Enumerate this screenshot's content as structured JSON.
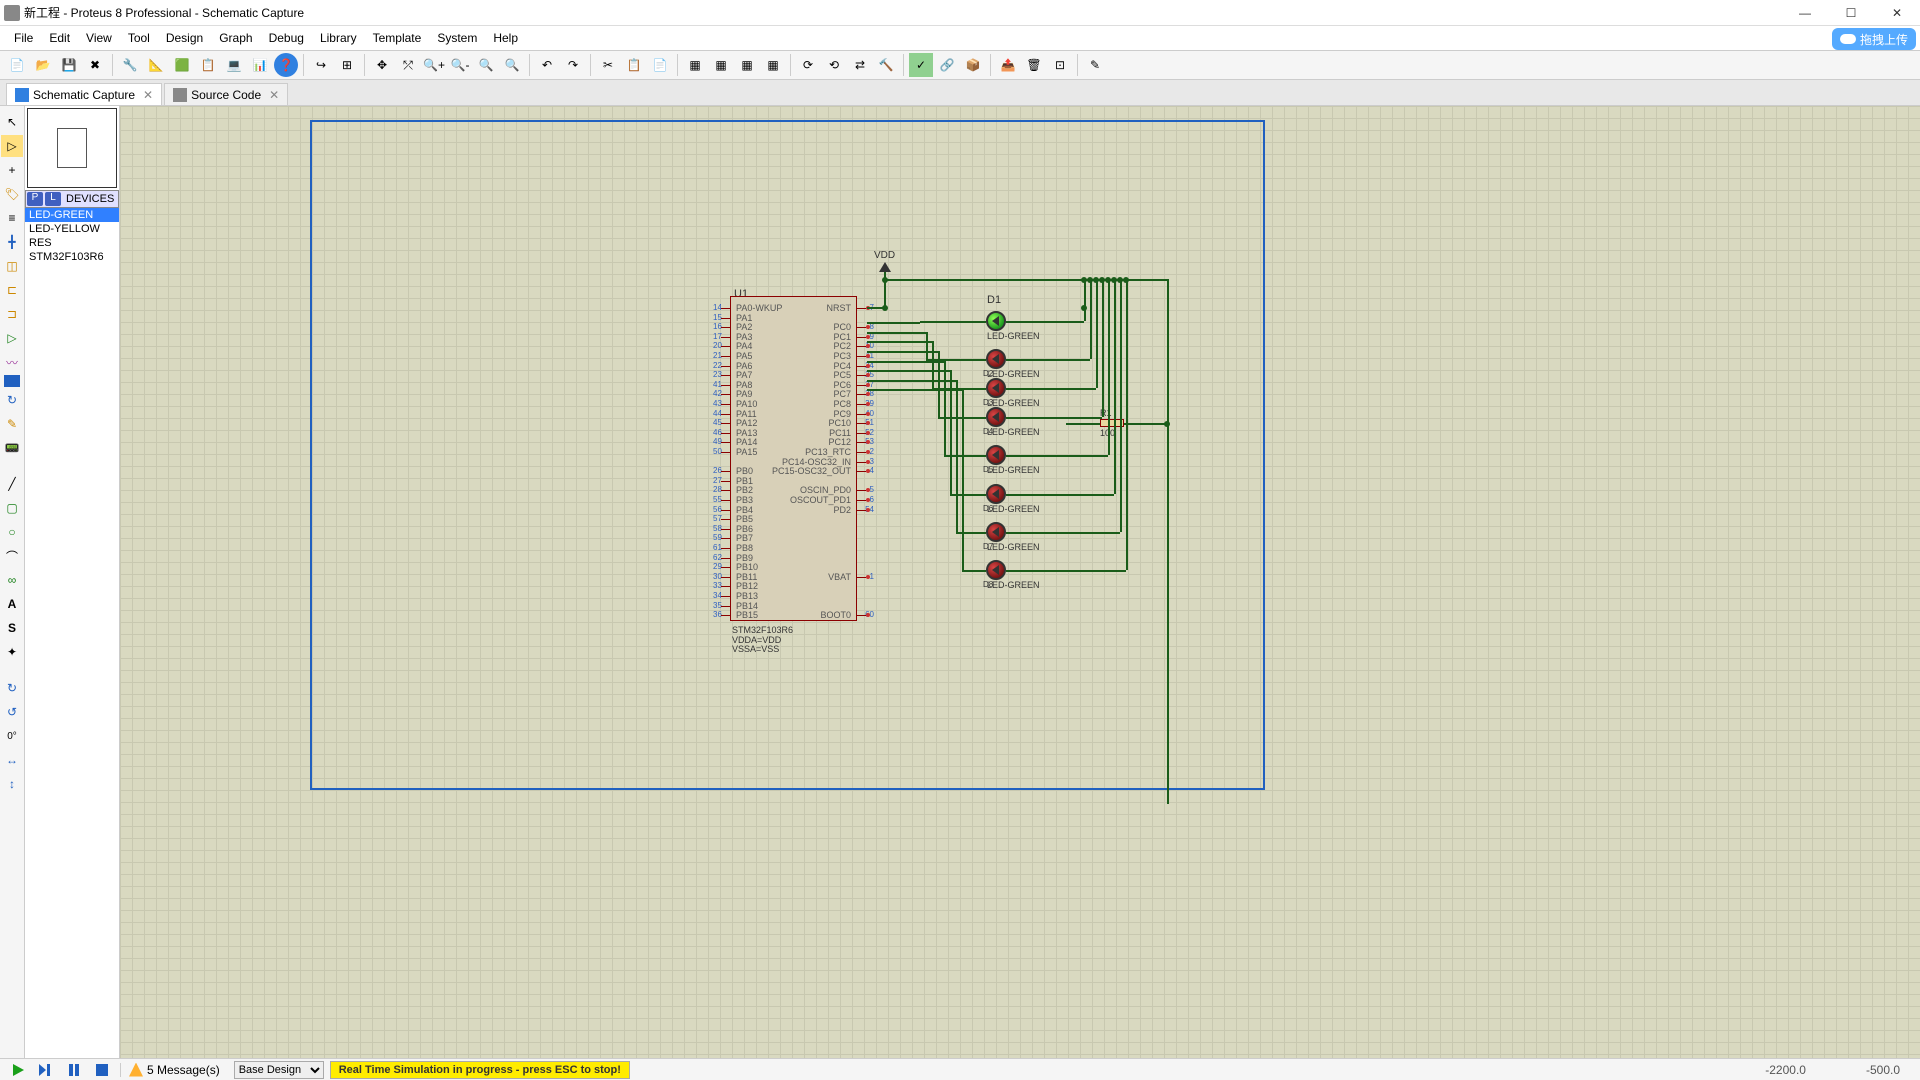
{
  "title": "新工程 - Proteus 8 Professional - Schematic Capture",
  "menu": [
    "File",
    "Edit",
    "View",
    "Tool",
    "Design",
    "Graph",
    "Debug",
    "Library",
    "Template",
    "System",
    "Help"
  ],
  "upload_label": "拖拽上传",
  "tabs": [
    {
      "label": "Schematic Capture",
      "active": true
    },
    {
      "label": "Source Code",
      "active": false
    }
  ],
  "devices_header": "DEVICES",
  "devices": [
    {
      "name": "LED-GREEN",
      "sel": true
    },
    {
      "name": "LED-YELLOW",
      "sel": false
    },
    {
      "name": "RES",
      "sel": false
    },
    {
      "name": "STM32F103R6",
      "sel": false
    }
  ],
  "messages_label": "5 Message(s)",
  "design_select": "Base Design",
  "sim_status": "Real Time Simulation in progress - press ESC to stop!",
  "coord_x": "-2200.0",
  "coord_y": "-500.0",
  "chip": {
    "ref": "U1",
    "name": "STM32F103R6",
    "sub1": "VDDA=VDD",
    "sub2": "VSSA=VSS",
    "left_pins": [
      {
        "n": "14",
        "lbl": "PA0-WKUP"
      },
      {
        "n": "15",
        "lbl": "PA1"
      },
      {
        "n": "16",
        "lbl": "PA2"
      },
      {
        "n": "17",
        "lbl": "PA3"
      },
      {
        "n": "20",
        "lbl": "PA4"
      },
      {
        "n": "21",
        "lbl": "PA5"
      },
      {
        "n": "22",
        "lbl": "PA6"
      },
      {
        "n": "23",
        "lbl": "PA7"
      },
      {
        "n": "41",
        "lbl": "PA8"
      },
      {
        "n": "42",
        "lbl": "PA9"
      },
      {
        "n": "43",
        "lbl": "PA10"
      },
      {
        "n": "44",
        "lbl": "PA11"
      },
      {
        "n": "45",
        "lbl": "PA12"
      },
      {
        "n": "46",
        "lbl": "PA13"
      },
      {
        "n": "49",
        "lbl": "PA14"
      },
      {
        "n": "50",
        "lbl": "PA15"
      },
      {
        "n": "",
        "lbl": ""
      },
      {
        "n": "26",
        "lbl": "PB0"
      },
      {
        "n": "27",
        "lbl": "PB1"
      },
      {
        "n": "28",
        "lbl": "PB2"
      },
      {
        "n": "55",
        "lbl": "PB3"
      },
      {
        "n": "56",
        "lbl": "PB4"
      },
      {
        "n": "57",
        "lbl": "PB5"
      },
      {
        "n": "58",
        "lbl": "PB6"
      },
      {
        "n": "59",
        "lbl": "PB7"
      },
      {
        "n": "61",
        "lbl": "PB8"
      },
      {
        "n": "62",
        "lbl": "PB9"
      },
      {
        "n": "29",
        "lbl": "PB10"
      },
      {
        "n": "30",
        "lbl": "PB11"
      },
      {
        "n": "33",
        "lbl": "PB12"
      },
      {
        "n": "34",
        "lbl": "PB13"
      },
      {
        "n": "35",
        "lbl": "PB14"
      },
      {
        "n": "36",
        "lbl": "PB15"
      }
    ],
    "right_pins": [
      {
        "n": "7",
        "lbl": "NRST"
      },
      {
        "n": "",
        "lbl": ""
      },
      {
        "n": "8",
        "lbl": "PC0"
      },
      {
        "n": "9",
        "lbl": "PC1"
      },
      {
        "n": "10",
        "lbl": "PC2"
      },
      {
        "n": "11",
        "lbl": "PC3"
      },
      {
        "n": "24",
        "lbl": "PC4"
      },
      {
        "n": "25",
        "lbl": "PC5"
      },
      {
        "n": "37",
        "lbl": "PC6"
      },
      {
        "n": "38",
        "lbl": "PC7"
      },
      {
        "n": "39",
        "lbl": "PC8"
      },
      {
        "n": "40",
        "lbl": "PC9"
      },
      {
        "n": "51",
        "lbl": "PC10"
      },
      {
        "n": "52",
        "lbl": "PC11"
      },
      {
        "n": "53",
        "lbl": "PC12"
      },
      {
        "n": "2",
        "lbl": "PC13_RTC"
      },
      {
        "n": "3",
        "lbl": "PC14-OSC32_IN"
      },
      {
        "n": "4",
        "lbl": "PC15-OSC32_OUT"
      },
      {
        "n": "",
        "lbl": ""
      },
      {
        "n": "5",
        "lbl": "OSCIN_PD0"
      },
      {
        "n": "6",
        "lbl": "OSCOUT_PD1"
      },
      {
        "n": "54",
        "lbl": "PD2"
      },
      {
        "n": "",
        "lbl": ""
      },
      {
        "n": "",
        "lbl": ""
      },
      {
        "n": "",
        "lbl": ""
      },
      {
        "n": "",
        "lbl": ""
      },
      {
        "n": "",
        "lbl": ""
      },
      {
        "n": "",
        "lbl": ""
      },
      {
        "n": "1",
        "lbl": "VBAT"
      },
      {
        "n": "",
        "lbl": ""
      },
      {
        "n": "",
        "lbl": ""
      },
      {
        "n": "",
        "lbl": ""
      },
      {
        "n": "60",
        "lbl": "BOOT0"
      }
    ]
  },
  "vdd_label": "VDD",
  "d1_label": "D1",
  "r1_label": "R1",
  "r1_val": "100",
  "led_labels": [
    "LED-GREEN",
    "LED-GREEN",
    "LED-GREEN",
    "LED-GREEN",
    "LED-GREEN",
    "LED-GREEN",
    "LED-GREEN",
    "LED-GREEN"
  ],
  "led_refs": [
    "D2",
    "D3",
    "D4",
    "D5",
    "D6",
    "D7",
    "D8"
  ],
  "colors": {
    "grid": "#d9d9c0",
    "wire": "#1a5c1a",
    "chip_border": "#8b0000"
  }
}
